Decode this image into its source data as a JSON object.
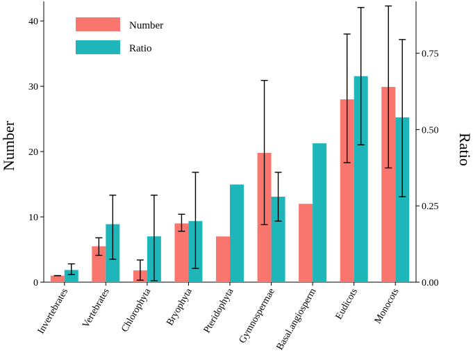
{
  "chart_data": {
    "type": "bar",
    "title": "",
    "xlabel": "",
    "ylabel": "Number",
    "y2label": "Ratio",
    "ylim": [
      0,
      43
    ],
    "y2lim": [
      0,
      0.92
    ],
    "yticks": [
      0,
      10,
      20,
      30,
      40
    ],
    "y2ticks": [
      "0.00",
      "0.25",
      "0.50",
      "0.75"
    ],
    "y2tick_values": [
      0,
      0.25,
      0.5,
      0.75
    ],
    "legend_position": "top-left",
    "categories": [
      "Invertebrates",
      "Vertebrates",
      "Chlorophyta",
      "Bryophyta",
      "Pteridophyta",
      "Gymnospermae",
      "Basal.angiosperm",
      "Eudicots",
      "Monocots"
    ],
    "series": [
      {
        "name": "Number",
        "axis": "left",
        "color": "#F8766D",
        "values": [
          1.0,
          5.5,
          1.8,
          9.0,
          7.0,
          19.8,
          12.0,
          28.0,
          29.9
        ],
        "err_low": [
          1.0,
          4.1,
          0.3,
          7.8,
          null,
          8.8,
          null,
          18.3,
          17.5
        ],
        "err_high": [
          1.0,
          6.8,
          3.4,
          10.4,
          null,
          30.9,
          null,
          38.0,
          42.3
        ]
      },
      {
        "name": "Ratio",
        "axis": "right",
        "color": "#1EB6B8",
        "values": [
          0.04,
          0.19,
          0.15,
          0.2,
          0.32,
          0.28,
          0.455,
          0.675,
          0.54
        ],
        "err_low": [
          0.025,
          0.075,
          0.005,
          0.045,
          null,
          0.2,
          null,
          0.45,
          0.28
        ],
        "err_high": [
          0.06,
          0.285,
          0.285,
          0.36,
          null,
          0.36,
          null,
          0.9,
          0.795
        ]
      }
    ]
  }
}
